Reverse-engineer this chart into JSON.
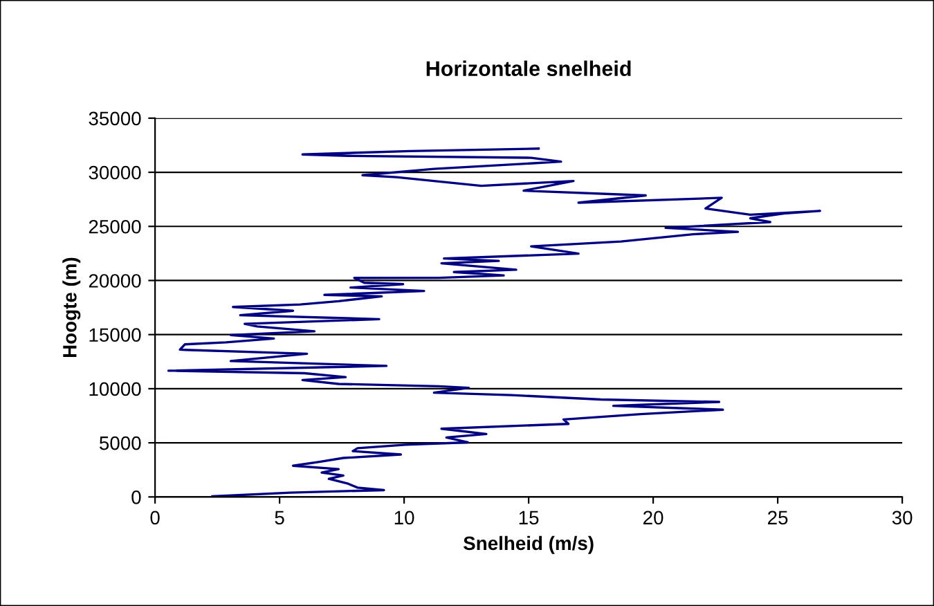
{
  "chart_data": {
    "type": "line",
    "title": "Horizontale snelheid",
    "xlabel": "Snelheid (m/s)",
    "ylabel": "Hoogte (m)",
    "xlim": [
      0,
      30
    ],
    "xticks": [
      0,
      5,
      10,
      15,
      20,
      25,
      30
    ],
    "ylim": [
      0,
      35000
    ],
    "yticks": [
      0,
      5000,
      10000,
      15000,
      20000,
      25000,
      30000,
      35000
    ],
    "grid": "y",
    "legend": false,
    "series": [
      {
        "color": "#000080",
        "x": [
          2.3,
          5.44,
          9.19,
          8.13,
          7.75,
          6.98,
          7.56,
          6.69,
          7.37,
          5.54,
          6.6,
          7.56,
          9.87,
          7.94,
          8.13,
          10.06,
          12.56,
          11.7,
          13.3,
          11.5,
          16.6,
          16.4,
          19.5,
          22.8,
          18.4,
          22.65,
          17.9,
          14.3,
          11.2,
          12.6,
          11.4,
          7.37,
          5.92,
          7.65,
          6.0,
          0.54,
          9.29,
          3.04,
          6.1,
          1.2,
          1.0,
          1.2,
          2.85,
          4.77,
          3.04,
          6.4,
          4.1,
          3.6,
          9.0,
          3.42,
          5.54,
          3.13,
          5.83,
          7.37,
          9.1,
          6.8,
          10.8,
          7.85,
          9.96,
          8.4,
          8.0,
          11.4,
          14.0,
          12.0,
          14.5,
          11.5,
          13.8,
          11.6,
          17.0,
          15.1,
          18.7,
          21.6,
          23.4,
          20.5,
          24.7,
          23.9,
          25.25,
          26.7,
          23.9,
          22.1,
          22.75,
          17.0,
          19.7,
          14.8,
          16.8,
          13.1,
          9.7,
          8.33,
          11.2,
          16.3,
          15.1,
          7.75,
          5.92,
          10.25,
          15.4
        ],
        "values": [
          50,
          400,
          630,
          860,
          1220,
          1670,
          1980,
          2250,
          2570,
          2880,
          3240,
          3600,
          3920,
          4230,
          4500,
          4820,
          5040,
          5490,
          5810,
          6300,
          6750,
          7160,
          7650,
          8060,
          8420,
          8780,
          9000,
          9410,
          9630,
          10080,
          10220,
          10440,
          10800,
          11070,
          11430,
          11660,
          12110,
          12560,
          13230,
          13590,
          13610,
          14100,
          14280,
          14640,
          14960,
          15310,
          15760,
          15990,
          16430,
          16790,
          17200,
          17550,
          17780,
          18090,
          18540,
          18670,
          19030,
          19350,
          19660,
          19790,
          20240,
          20250,
          20470,
          20780,
          21000,
          21590,
          21810,
          22030,
          22480,
          23150,
          23600,
          24270,
          24500,
          24860,
          25400,
          25750,
          26200,
          26430,
          26080,
          26650,
          27640,
          27190,
          27860,
          28300,
          29200,
          28750,
          29550,
          29730,
          30310,
          30980,
          31340,
          31520,
          31650,
          31960,
          32190
        ]
      }
    ]
  }
}
